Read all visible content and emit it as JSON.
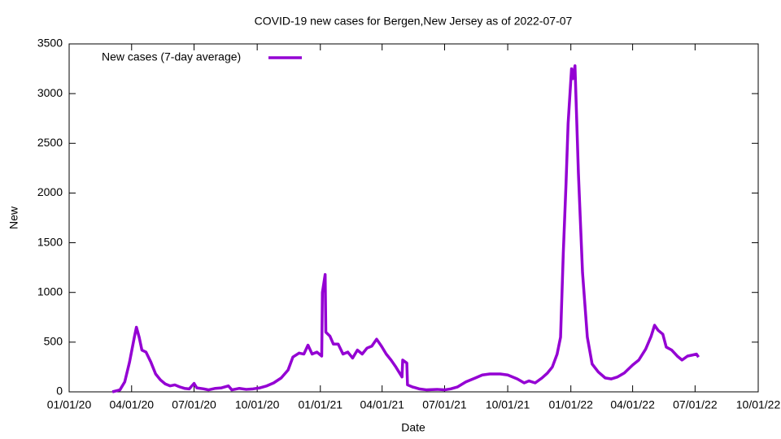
{
  "chart_data": {
    "type": "line",
    "title": "COVID-19 new cases for Bergen,New Jersey as of 2022-07-07",
    "xlabel": "Date",
    "ylabel": "New",
    "x": [
      "2020-03-04",
      "2020-03-15",
      "2020-03-22",
      "2020-03-29",
      "2020-04-05",
      "2020-04-08",
      "2020-04-12",
      "2020-04-16",
      "2020-04-22",
      "2020-04-29",
      "2020-05-06",
      "2020-05-13",
      "2020-05-20",
      "2020-05-27",
      "2020-06-03",
      "2020-06-10",
      "2020-06-17",
      "2020-06-24",
      "2020-07-01",
      "2020-07-05",
      "2020-07-15",
      "2020-07-22",
      "2020-08-01",
      "2020-08-10",
      "2020-08-20",
      "2020-08-25",
      "2020-09-05",
      "2020-09-15",
      "2020-09-25",
      "2020-10-05",
      "2020-10-15",
      "2020-10-25",
      "2020-11-05",
      "2020-11-15",
      "2020-11-22",
      "2020-12-01",
      "2020-12-08",
      "2020-12-14",
      "2020-12-20",
      "2020-12-27",
      "2021-01-03",
      "2021-01-04",
      "2021-01-08",
      "2021-01-09",
      "2021-01-15",
      "2021-01-20",
      "2021-01-27",
      "2021-02-03",
      "2021-02-10",
      "2021-02-17",
      "2021-02-24",
      "2021-03-03",
      "2021-03-10",
      "2021-03-17",
      "2021-03-24",
      "2021-03-31",
      "2021-04-07",
      "2021-04-14",
      "2021-04-21",
      "2021-04-30",
      "2021-05-01",
      "2021-05-07",
      "2021-05-08",
      "2021-05-15",
      "2021-05-25",
      "2021-06-05",
      "2021-06-20",
      "2021-07-01",
      "2021-07-10",
      "2021-07-20",
      "2021-08-01",
      "2021-08-15",
      "2021-08-25",
      "2021-09-05",
      "2021-09-20",
      "2021-10-01",
      "2021-10-15",
      "2021-10-25",
      "2021-11-01",
      "2021-11-10",
      "2021-11-20",
      "2021-11-28",
      "2021-12-05",
      "2021-12-12",
      "2021-12-17",
      "2021-12-21",
      "2021-12-25",
      "2021-12-28",
      "2022-01-02",
      "2022-01-04",
      "2022-01-07",
      "2022-01-12",
      "2022-01-18",
      "2022-01-25",
      "2022-02-01",
      "2022-02-10",
      "2022-02-20",
      "2022-03-01",
      "2022-03-10",
      "2022-03-20",
      "2022-04-01",
      "2022-04-10",
      "2022-04-20",
      "2022-04-28",
      "2022-05-03",
      "2022-05-08",
      "2022-05-15",
      "2022-05-20",
      "2022-05-28",
      "2022-06-05",
      "2022-06-12",
      "2022-06-20",
      "2022-06-27",
      "2022-07-03",
      "2022-07-06"
    ],
    "series": [
      {
        "name": "New cases (7-day average)",
        "color": "#9400d3",
        "values": [
          0,
          20,
          100,
          300,
          550,
          650,
          550,
          420,
          400,
          300,
          180,
          120,
          80,
          60,
          70,
          50,
          35,
          30,
          85,
          40,
          30,
          20,
          35,
          40,
          60,
          20,
          35,
          25,
          30,
          40,
          60,
          90,
          140,
          220,
          350,
          390,
          380,
          470,
          380,
          400,
          360,
          1000,
          1180,
          600,
          560,
          480,
          480,
          380,
          400,
          340,
          420,
          380,
          440,
          460,
          530,
          460,
          380,
          320,
          250,
          150,
          320,
          290,
          70,
          50,
          30,
          20,
          25,
          20,
          30,
          50,
          100,
          140,
          170,
          180,
          180,
          170,
          130,
          90,
          110,
          90,
          140,
          190,
          250,
          380,
          550,
          1400,
          2100,
          2700,
          3250,
          3150,
          3280,
          2200,
          1200,
          550,
          280,
          200,
          140,
          130,
          150,
          190,
          270,
          320,
          430,
          560,
          670,
          620,
          580,
          450,
          420,
          360,
          320,
          360,
          370,
          380,
          350
        ]
      }
    ],
    "xlim": [
      "2020-01-01",
      "2022-10-01"
    ],
    "xticks": [
      {
        "value": "2020-01-01",
        "label": "01/01/20"
      },
      {
        "value": "2020-04-01",
        "label": "04/01/20"
      },
      {
        "value": "2020-07-01",
        "label": "07/01/20"
      },
      {
        "value": "2020-10-01",
        "label": "10/01/20"
      },
      {
        "value": "2021-01-01",
        "label": "01/01/21"
      },
      {
        "value": "2021-04-01",
        "label": "04/01/21"
      },
      {
        "value": "2021-07-01",
        "label": "07/01/21"
      },
      {
        "value": "2021-10-01",
        "label": "10/01/21"
      },
      {
        "value": "2022-01-01",
        "label": "01/01/22"
      },
      {
        "value": "2022-04-01",
        "label": "04/01/22"
      },
      {
        "value": "2022-07-01",
        "label": "07/01/22"
      },
      {
        "value": "2022-10-01",
        "label": "10/01/22"
      }
    ],
    "ylim": [
      0,
      3500
    ],
    "yticks": [
      0,
      500,
      1000,
      1500,
      2000,
      2500,
      3000,
      3500
    ],
    "grid": false,
    "legend": "top-left"
  }
}
